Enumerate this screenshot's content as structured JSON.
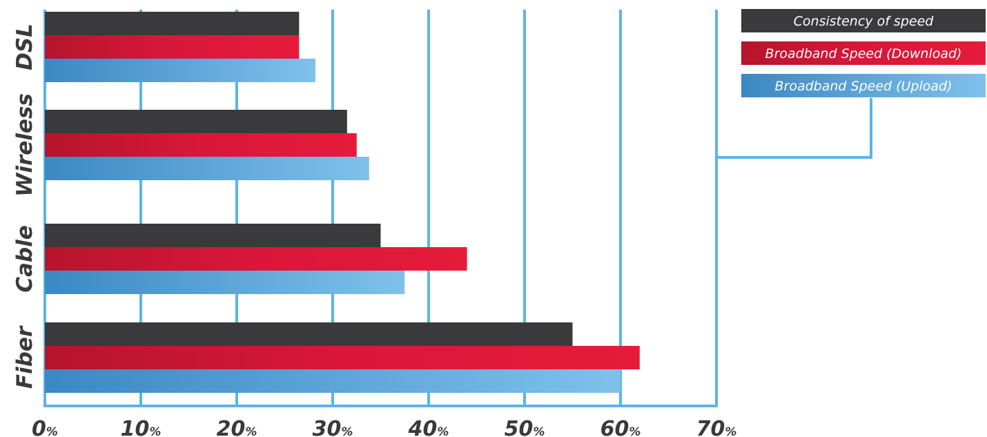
{
  "chart_data": {
    "type": "bar",
    "orientation": "horizontal",
    "categories": [
      "DSL",
      "Wireless",
      "Cable",
      "Fiber"
    ],
    "series": [
      {
        "name": "Consistency of speed",
        "values": [
          26.5,
          31.5,
          35,
          55
        ],
        "color": "#3d3d3f"
      },
      {
        "name": "Broadband Speed (Download)",
        "values": [
          26.5,
          32.5,
          44,
          62
        ],
        "color": "#e31837"
      },
      {
        "name": "Broadband Speed (Upload)",
        "values": [
          28.2,
          33.8,
          37.5,
          60
        ],
        "color": "#5aacdf"
      }
    ],
    "x_ticks": [
      {
        "value": 0,
        "num": "0",
        "unit": "%"
      },
      {
        "value": 10,
        "num": "10",
        "unit": "%"
      },
      {
        "value": 20,
        "num": "20",
        "unit": "%"
      },
      {
        "value": 30,
        "num": "30",
        "unit": "%"
      },
      {
        "value": 40,
        "num": "40",
        "unit": "%"
      },
      {
        "value": 50,
        "num": "50",
        "unit": "%"
      },
      {
        "value": 60,
        "num": "60",
        "unit": "%"
      },
      {
        "value": 70,
        "num": "70",
        "unit": "%"
      }
    ],
    "xlim": [
      0,
      70
    ],
    "title": "",
    "xlabel": "",
    "ylabel": "",
    "grid": true,
    "legend_position": "top-right",
    "grid_color": "#5ab4e8"
  }
}
